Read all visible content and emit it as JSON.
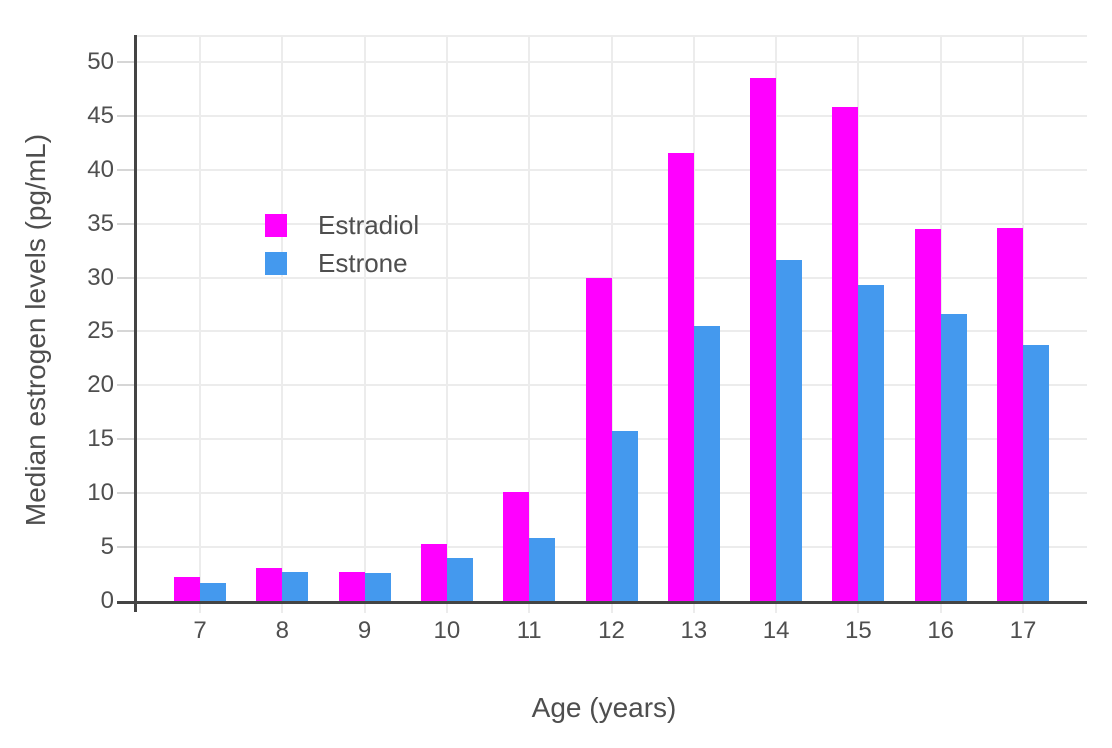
{
  "chart_data": {
    "type": "bar",
    "bar_mode": "grouped",
    "title": "",
    "xlabel": "Age (years)",
    "ylabel": "Median estrogen levels (pg/mL)",
    "categories": [
      "7",
      "8",
      "9",
      "10",
      "11",
      "12",
      "13",
      "14",
      "15",
      "16",
      "17"
    ],
    "series": [
      {
        "name": "Estradiol",
        "color": "#FF00FF",
        "values": [
          2.2,
          3.1,
          2.7,
          5.3,
          10.1,
          30.0,
          41.6,
          48.5,
          45.8,
          34.5,
          34.6
        ]
      },
      {
        "name": "Estrone",
        "color": "#4499EE",
        "values": [
          1.7,
          2.7,
          2.6,
          4.0,
          5.8,
          15.8,
          25.5,
          31.6,
          29.3,
          26.6,
          23.7
        ]
      }
    ],
    "ylim": [
      0,
      52.5
    ],
    "yticks": [
      0,
      5,
      10,
      15,
      20,
      25,
      30,
      35,
      40,
      45,
      50
    ],
    "grid": true,
    "legend_position": "inside-top-left"
  },
  "colors": {
    "background": "#FFFFFF",
    "gridline": "#ECECEC",
    "tick_mark": "#D6D6D6",
    "axis_line": "#444444",
    "text": "#4E4E4E"
  }
}
